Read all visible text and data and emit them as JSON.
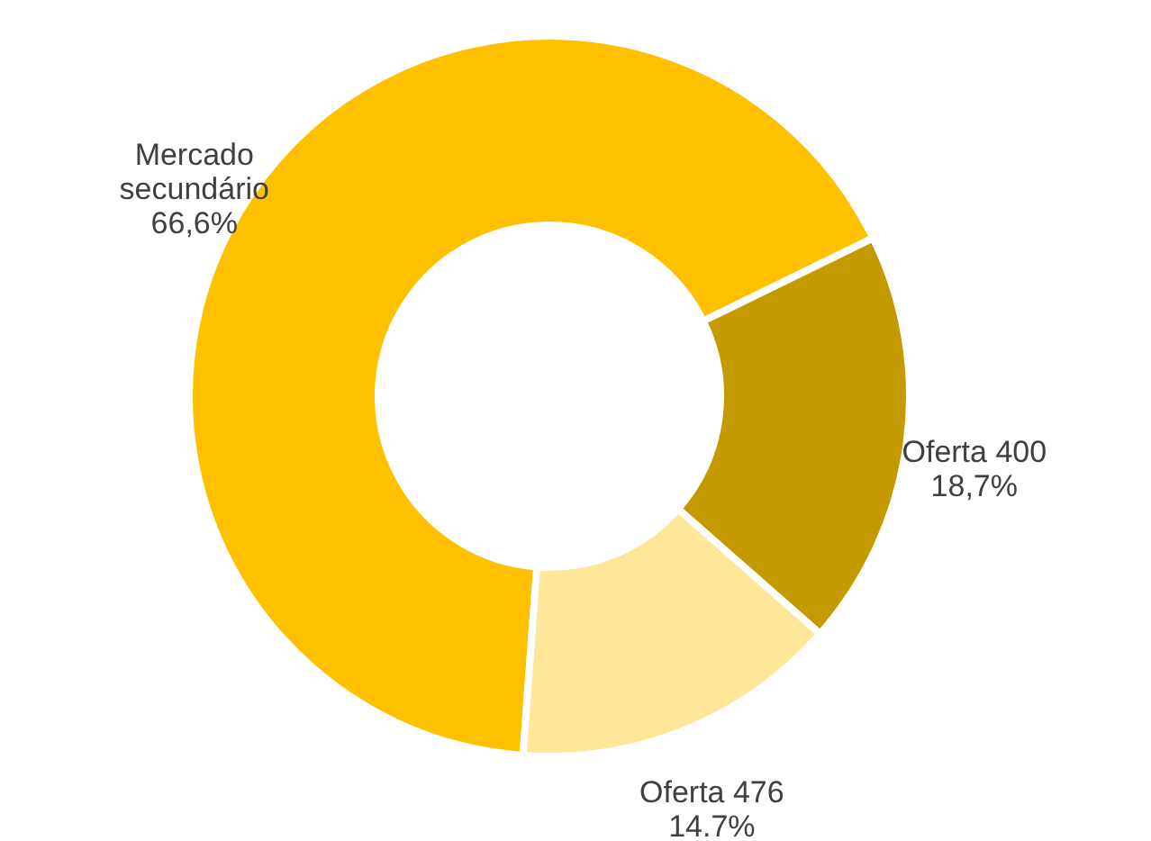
{
  "chart_data": {
    "type": "donut",
    "categories": [
      "Mercado secundário",
      "Oferta 400",
      "Oferta 476"
    ],
    "values": [
      66.6,
      18.7,
      14.7
    ],
    "colors": [
      "#ffc000",
      "#c49a00",
      "#ffe699"
    ],
    "value_labels": [
      "66,6%",
      "18,7%",
      "14.7%"
    ]
  }
}
